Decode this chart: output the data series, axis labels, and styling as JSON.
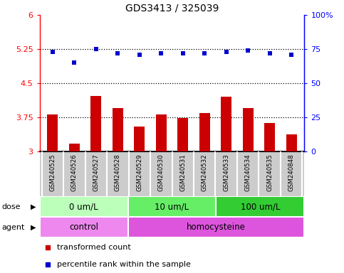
{
  "title": "GDS3413 / 325039",
  "samples": [
    "GSM240525",
    "GSM240526",
    "GSM240527",
    "GSM240528",
    "GSM240529",
    "GSM240530",
    "GSM240531",
    "GSM240532",
    "GSM240533",
    "GSM240534",
    "GSM240535",
    "GSM240848"
  ],
  "bar_values": [
    3.82,
    3.18,
    4.22,
    3.95,
    3.55,
    3.82,
    3.73,
    3.85,
    4.2,
    3.95,
    3.62,
    3.38
  ],
  "dot_values": [
    73,
    65,
    75,
    72,
    71,
    72,
    72,
    72,
    73,
    74,
    72,
    71
  ],
  "bar_color": "#cc0000",
  "dot_color": "#0000cc",
  "ylim_left": [
    3.0,
    6.0
  ],
  "ylim_right": [
    0,
    100
  ],
  "yticks_left": [
    3.0,
    3.75,
    4.5,
    5.25,
    6.0
  ],
  "yticks_right": [
    0,
    25,
    50,
    75,
    100
  ],
  "ytick_labels_left": [
    "3",
    "3.75",
    "4.5",
    "5.25",
    "6"
  ],
  "ytick_labels_right": [
    "0",
    "25",
    "50",
    "75",
    "100%"
  ],
  "hlines": [
    3.75,
    4.5,
    5.25
  ],
  "dose_groups": [
    {
      "label": "0 um/L",
      "start": 0,
      "end": 4,
      "color": "#bbffbb"
    },
    {
      "label": "10 um/L",
      "start": 4,
      "end": 8,
      "color": "#66ee66"
    },
    {
      "label": "100 um/L",
      "start": 8,
      "end": 12,
      "color": "#33cc33"
    }
  ],
  "agent_groups": [
    {
      "label": "control",
      "start": 0,
      "end": 4,
      "color": "#ee88ee"
    },
    {
      "label": "homocysteine",
      "start": 4,
      "end": 12,
      "color": "#dd55dd"
    }
  ],
  "dose_label": "dose",
  "agent_label": "agent",
  "legend_bar_label": "transformed count",
  "legend_dot_label": "percentile rank within the sample",
  "sample_bg_color": "#cccccc",
  "plot_bg_color": "#ffffff",
  "bar_width": 0.5
}
